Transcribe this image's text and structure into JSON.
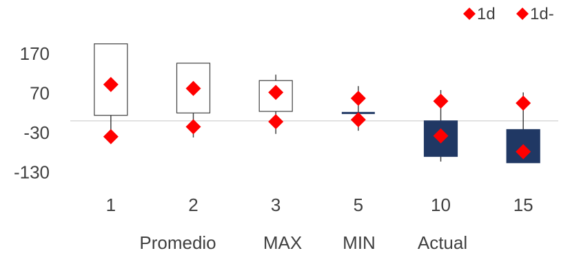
{
  "chart_data": {
    "type": "candlestick",
    "title": "",
    "xlabel": "",
    "ylabel": "",
    "ylim": [
      -150,
      205
    ],
    "yticks": [
      170,
      70,
      -30,
      -130
    ],
    "baseline": 0,
    "categories": [
      "1",
      "2",
      "3",
      "5",
      "10",
      "15"
    ],
    "subcategories": [
      "Promedio",
      "MAX",
      "MIN",
      "Actual"
    ],
    "candles": [
      {
        "x": "1",
        "open": 14,
        "close": 195,
        "high": 195,
        "low": -58,
        "direction": "up"
      },
      {
        "x": "2",
        "open": 20,
        "close": 146,
        "high": 146,
        "low": -42,
        "direction": "up"
      },
      {
        "x": "3",
        "open": 24,
        "close": 102,
        "high": 117,
        "low": -33,
        "direction": "up"
      },
      {
        "x": "5",
        "open": 18,
        "close": 22,
        "high": 88,
        "low": -25,
        "direction": "up"
      },
      {
        "x": "10",
        "open": -90,
        "close": 0,
        "high": 78,
        "low": -103,
        "direction": "down"
      },
      {
        "x": "15",
        "open": -106,
        "close": -22,
        "high": 72,
        "low": -106,
        "direction": "down"
      }
    ],
    "series": [
      {
        "name": "1d",
        "values": [
          92,
          82,
          72,
          57,
          50,
          45
        ]
      },
      {
        "name": "1d-",
        "values": [
          -40,
          -15,
          -2,
          3,
          -38,
          -78
        ]
      }
    ],
    "colors": {
      "marker": "#ff0000",
      "down_fill": "#203864",
      "up_fill": "#ffffff",
      "outline": "#404040",
      "wick": "#404040",
      "gridline": "#d9d9d9",
      "text": "#404040"
    },
    "grid": false,
    "legend_position": "top-right"
  }
}
